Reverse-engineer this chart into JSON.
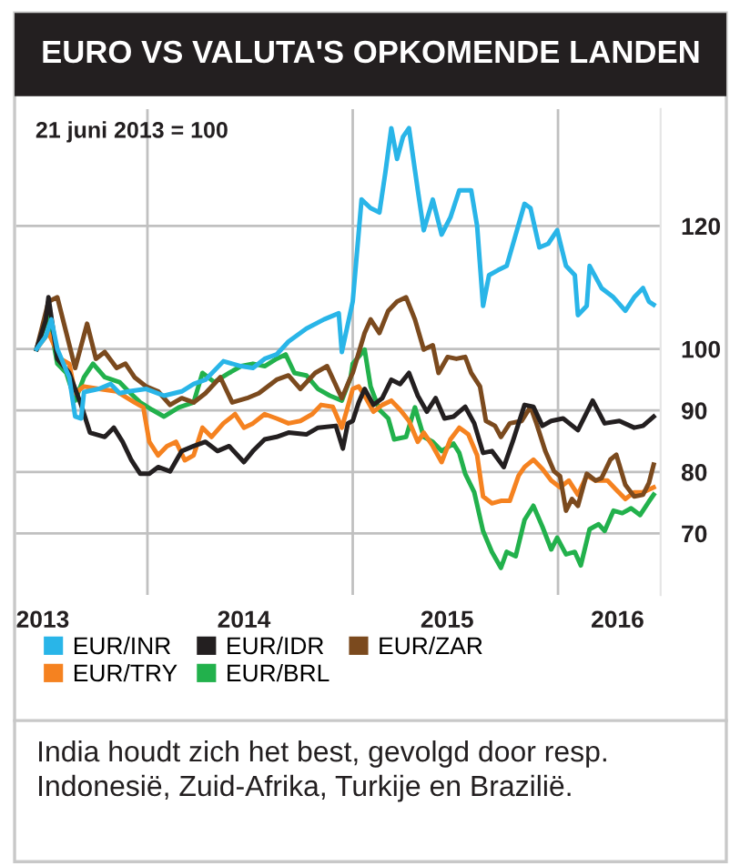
{
  "chart_data": {
    "type": "line",
    "title": "EURO VS VALUTA'S OPKOMENDE LANDEN",
    "subtitle": "21 juni 2013 = 100",
    "annotations": [
      "India houdt zich het best, gevolgd door resp. Indonesië, Zuid-Afrika, Turkije en Brazilië."
    ],
    "series": [
      {
        "name": "EUR/INR",
        "color": "#29b5e8",
        "x": [
          2013.46,
          2013.504,
          2013.532,
          2013.561,
          2013.619,
          2013.648,
          2013.677,
          2013.691,
          2013.763,
          2013.821,
          2013.864,
          2013.908,
          2013.994,
          2014.081,
          2014.167,
          2014.225,
          2014.283,
          2014.37,
          2014.456,
          2014.514,
          2014.571,
          2014.629,
          2014.687,
          2014.774,
          2014.86,
          2014.932,
          2014.947,
          2014.976,
          2015.0,
          2015.043,
          2015.087,
          2015.13,
          2015.159,
          2015.188,
          2015.216,
          2015.245,
          2015.274,
          2015.317,
          2015.346,
          2015.39,
          2015.433,
          2015.476,
          2015.519,
          2015.577,
          2015.606,
          2015.635,
          2015.664,
          2015.707,
          2015.75,
          2015.794,
          2015.837,
          2015.866,
          2015.909,
          2015.952,
          2015.996,
          2016.039,
          2016.082,
          2016.097,
          2016.14,
          2016.154,
          2016.212,
          2016.27,
          2016.328,
          2016.371,
          2016.414,
          2016.443,
          2016.466
        ],
        "values": [
          100,
          102,
          104.8,
          100,
          95.4,
          89,
          88.7,
          93,
          93.5,
          94.3,
          92.8,
          93.1,
          93.5,
          92.4,
          93.1,
          94.3,
          95,
          98,
          97.2,
          96.9,
          98.4,
          99.1,
          101.2,
          103.3,
          104.8,
          105.8,
          99.5,
          104,
          107.7,
          124.3,
          122.9,
          122.2,
          128.7,
          135.9,
          130.9,
          134.5,
          135.9,
          125.8,
          119.3,
          124.3,
          118.6,
          121.4,
          125.8,
          125.8,
          120,
          107,
          112,
          112.8,
          113.5,
          118.6,
          123.6,
          122.9,
          116.5,
          117.1,
          119.3,
          113.5,
          112,
          105.5,
          107,
          113.5,
          109.9,
          108.4,
          106.2,
          108.4,
          109.9,
          107.7,
          107.2
        ]
      },
      {
        "name": "EUR/IDR",
        "color": "#231f20",
        "x": [
          2013.46,
          2013.504,
          2013.518,
          2013.561,
          2013.619,
          2013.677,
          2013.72,
          2013.792,
          2013.836,
          2013.879,
          2013.922,
          2013.965,
          2014.009,
          2014.052,
          2014.11,
          2014.167,
          2014.225,
          2014.283,
          2014.341,
          2014.398,
          2014.47,
          2014.514,
          2014.571,
          2014.629,
          2014.687,
          2014.774,
          2014.831,
          2014.918,
          2014.952,
          2014.976,
          2015.0,
          2015.029,
          2015.058,
          2015.101,
          2015.144,
          2015.188,
          2015.231,
          2015.274,
          2015.317,
          2015.361,
          2015.404,
          2015.447,
          2015.491,
          2015.548,
          2015.592,
          2015.635,
          2015.678,
          2015.736,
          2015.779,
          2015.837,
          2015.88,
          2015.924,
          2015.967,
          2016.025,
          2016.097,
          2016.169,
          2016.227,
          2016.299,
          2016.371,
          2016.414,
          2016.466
        ],
        "values": [
          100,
          104.6,
          108.4,
          98.4,
          96.1,
          90.9,
          86.4,
          85.7,
          87.2,
          84.9,
          81.9,
          79.7,
          79.7,
          80.8,
          80.1,
          83.4,
          84.2,
          84.9,
          83.4,
          84.2,
          81.6,
          83.4,
          85.3,
          85.7,
          86.4,
          86.1,
          87.2,
          87.5,
          83.8,
          87.9,
          88.3,
          91.3,
          93.5,
          90.9,
          92,
          95,
          94.3,
          96.1,
          92.4,
          89.8,
          92,
          88.7,
          89,
          90.6,
          87.9,
          83.1,
          83.4,
          80.8,
          84.9,
          90.9,
          90.6,
          87.5,
          88.3,
          88.7,
          86.8,
          91.6,
          87.9,
          88.3,
          87.2,
          87.5,
          89
        ]
      },
      {
        "name": "EUR/ZAR",
        "color": "#7b4a1e",
        "x": [
          2013.46,
          2013.518,
          2013.561,
          2013.605,
          2013.648,
          2013.706,
          2013.749,
          2013.792,
          2013.85,
          2013.893,
          2013.937,
          2013.994,
          2014.052,
          2014.11,
          2014.167,
          2014.225,
          2014.283,
          2014.355,
          2014.413,
          2014.485,
          2014.543,
          2014.629,
          2014.687,
          2014.745,
          2014.817,
          2014.875,
          2014.947,
          2014.99,
          2015.0,
          2015.058,
          2015.087,
          2015.13,
          2015.173,
          2015.216,
          2015.26,
          2015.303,
          2015.346,
          2015.39,
          2015.418,
          2015.462,
          2015.505,
          2015.548,
          2015.577,
          2015.62,
          2015.649,
          2015.693,
          2015.722,
          2015.765,
          2015.823,
          2015.866,
          2015.895,
          2015.938,
          2015.981,
          2016.01,
          2016.039,
          2016.068,
          2016.097,
          2016.14,
          2016.183,
          2016.212,
          2016.255,
          2016.284,
          2016.328,
          2016.371,
          2016.414,
          2016.443,
          2016.466
        ],
        "values": [
          100,
          107.7,
          108.4,
          102.6,
          96.9,
          104.1,
          98.4,
          99.5,
          96.9,
          97.6,
          95.4,
          93.9,
          93.1,
          90.9,
          92,
          91.3,
          92.8,
          95.4,
          91.3,
          92,
          92.8,
          95,
          95.7,
          93.5,
          96.1,
          97.2,
          92,
          95.4,
          96.1,
          102.6,
          104.8,
          102.6,
          106.2,
          107.7,
          108.4,
          104.8,
          99.9,
          100.6,
          96.1,
          98.7,
          98.4,
          98.7,
          96.1,
          93.9,
          88.3,
          87.5,
          85.7,
          87.9,
          88.3,
          90.6,
          87.9,
          83.4,
          80.1,
          79.3,
          73.7,
          75.6,
          74.5,
          79.7,
          78.6,
          79,
          82,
          82.8,
          77.9,
          76,
          76.3,
          78.2,
          81.2
        ]
      },
      {
        "name": "EUR/TRY",
        "color": "#f58220",
        "x": [
          2013.46,
          2013.518,
          2013.576,
          2013.619,
          2013.648,
          2013.691,
          2013.763,
          2013.85,
          2013.937,
          2013.98,
          2014.009,
          2014.052,
          2014.095,
          2014.139,
          2014.182,
          2014.225,
          2014.268,
          2014.312,
          2014.37,
          2014.427,
          2014.47,
          2014.514,
          2014.571,
          2014.629,
          2014.687,
          2014.745,
          2014.803,
          2014.846,
          2014.903,
          2014.947,
          2014.976,
          2015.0,
          2015.029,
          2015.058,
          2015.101,
          2015.144,
          2015.188,
          2015.231,
          2015.274,
          2015.317,
          2015.346,
          2015.39,
          2015.433,
          2015.476,
          2015.519,
          2015.563,
          2015.606,
          2015.635,
          2015.678,
          2015.722,
          2015.765,
          2015.808,
          2015.837,
          2015.88,
          2015.924,
          2015.967,
          2016.01,
          2016.053,
          2016.097,
          2016.14,
          2016.183,
          2016.241,
          2016.284,
          2016.328,
          2016.371,
          2016.414,
          2016.466
        ],
        "values": [
          100,
          102.6,
          98.4,
          97.6,
          92.8,
          93.9,
          93.5,
          93.1,
          91.3,
          90.5,
          84.9,
          82.7,
          84.2,
          84.9,
          81.9,
          82.7,
          87.2,
          85.7,
          87.9,
          89.4,
          87.2,
          87.9,
          89.4,
          88.7,
          87.9,
          88.3,
          89.4,
          90.9,
          90.6,
          87.2,
          90.6,
          93.5,
          93.9,
          92.4,
          89.8,
          90.9,
          91.6,
          90.1,
          88.3,
          84.9,
          86.4,
          84.2,
          81.6,
          85.3,
          87.2,
          86.1,
          82.7,
          76,
          74.9,
          75.3,
          75.3,
          79.4,
          80.8,
          82,
          80.5,
          78.6,
          77.5,
          78.6,
          76.3,
          79.4,
          78.6,
          78.6,
          77.1,
          75.6,
          76.7,
          76.7,
          77.5
        ]
      },
      {
        "name": "EUR/BRL",
        "color": "#22b14c",
        "x": [
          2013.46,
          2013.518,
          2013.561,
          2013.605,
          2013.648,
          2013.691,
          2013.735,
          2013.792,
          2013.864,
          2013.908,
          2013.965,
          2014.023,
          2014.081,
          2014.153,
          2014.225,
          2014.268,
          2014.326,
          2014.398,
          2014.456,
          2014.514,
          2014.571,
          2014.629,
          2014.673,
          2014.716,
          2014.774,
          2014.831,
          2014.889,
          2014.947,
          2014.99,
          2015.0,
          2015.058,
          2015.087,
          2015.13,
          2015.173,
          2015.202,
          2015.26,
          2015.303,
          2015.346,
          2015.39,
          2015.433,
          2015.491,
          2015.519,
          2015.548,
          2015.592,
          2015.635,
          2015.678,
          2015.722,
          2015.75,
          2015.794,
          2015.837,
          2015.88,
          2015.924,
          2015.967,
          2015.996,
          2016.039,
          2016.082,
          2016.111,
          2016.154,
          2016.198,
          2016.227,
          2016.27,
          2016.313,
          2016.356,
          2016.4,
          2016.443,
          2016.466
        ],
        "values": [
          100,
          105.5,
          97.6,
          96.1,
          91.6,
          95.4,
          97.6,
          95.4,
          94.6,
          93.1,
          91.3,
          90.1,
          89,
          90.5,
          91.3,
          96.1,
          94.6,
          96.1,
          97.2,
          97.6,
          97.2,
          98.4,
          99.1,
          96.1,
          95.7,
          93.5,
          92.4,
          91.6,
          95.4,
          97.6,
          99.9,
          93.9,
          90.1,
          88.7,
          85.3,
          85.7,
          90.5,
          85.7,
          84.9,
          83.4,
          84.6,
          83.1,
          79.7,
          76.7,
          70.4,
          67,
          64.4,
          67,
          66.3,
          72.2,
          74.5,
          71.1,
          67.4,
          69.3,
          66.6,
          67,
          64.8,
          70.7,
          71.5,
          70.4,
          73.7,
          73.3,
          74.1,
          73,
          75.2,
          76.3
        ]
      }
    ],
    "xlim": [
      2013.36,
      2016.5
    ],
    "xticks": [
      {
        "value": 2014,
        "label": null
      },
      {
        "value": 2015,
        "label": null
      },
      {
        "value": 2016,
        "label": null
      },
      {
        "value": 2013.49,
        "label": "2013"
      },
      {
        "value": 2014.47,
        "label": "2014"
      },
      {
        "value": 2015.46,
        "label": "2015"
      },
      {
        "value": 2016.29,
        "label": "2016"
      }
    ],
    "ylim": [
      60,
      139
    ],
    "yticks": [
      70,
      80,
      90,
      100,
      120
    ],
    "grid": true,
    "legend": "bottom",
    "marker": "none",
    "line_style": "solid"
  }
}
